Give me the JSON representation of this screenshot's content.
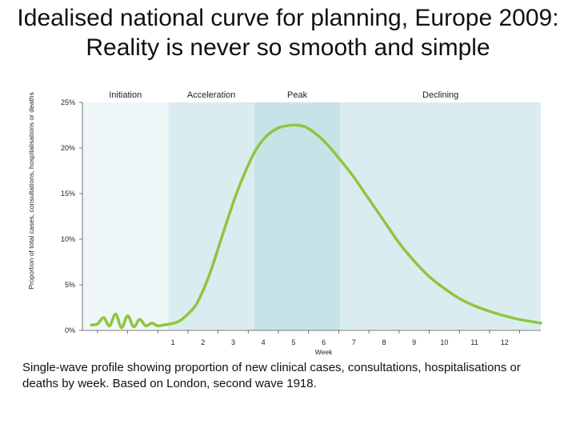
{
  "colors": {
    "curve": "#8dc63f",
    "initiation_band": "#eef6f8",
    "acceleration_band": "#dbecf1",
    "peak_band": "#c8e3e8",
    "declining_band": "#dbecf1",
    "axis": "#555555"
  },
  "chart_data": {
    "type": "line",
    "title": "Idealised national curve for planning, Europe 2009: Reality is never so smooth and simple",
    "xlabel": "Week",
    "ylabel": "Proportion of total cases, consultations, hospitalisations or deaths",
    "y_ticks": [
      "0%",
      "5%",
      "10%",
      "15%",
      "20%",
      "25%"
    ],
    "x_ticks": [
      "1",
      "2",
      "3",
      "4",
      "5",
      "6",
      "7",
      "8",
      "9",
      "10",
      "11",
      "12"
    ],
    "ylim": [
      0,
      25
    ],
    "xlim": [
      -2,
      13.2
    ],
    "phases": [
      {
        "label": "Initiation",
        "start": -2,
        "end": 0.85
      },
      {
        "label": "Acceleration",
        "start": 0.85,
        "end": 3.7
      },
      {
        "label": "Peak",
        "start": 3.7,
        "end": 6.55
      },
      {
        "label": "Declining",
        "start": 6.55,
        "end": 13.2
      }
    ],
    "series": [
      {
        "x": [
          -1.7,
          -1.5,
          -1.3,
          -1.1,
          -0.9,
          -0.7,
          -0.5,
          -0.3,
          -0.1,
          0.1,
          0.3,
          0.5,
          0.7,
          0.9,
          1.2,
          1.5,
          1.8,
          2.2,
          2.6,
          3.0,
          3.3,
          3.7,
          4.1,
          4.5,
          4.9,
          5.1,
          5.4,
          5.8,
          6.2,
          6.6,
          7.0,
          7.5,
          8.0,
          8.5,
          9.0,
          9.5,
          10.0,
          10.5,
          11.0,
          11.5,
          12.0,
          12.5,
          13.2
        ],
        "y": [
          0.6,
          0.7,
          1.4,
          0.5,
          1.8,
          0.3,
          1.6,
          0.4,
          1.2,
          0.5,
          0.8,
          0.5,
          0.6,
          0.7,
          1.0,
          1.8,
          3.0,
          6.0,
          10.0,
          14.0,
          16.6,
          19.5,
          21.3,
          22.2,
          22.5,
          22.5,
          22.3,
          21.4,
          20.1,
          18.5,
          16.8,
          14.4,
          12.0,
          9.6,
          7.6,
          5.9,
          4.6,
          3.5,
          2.7,
          2.1,
          1.6,
          1.2,
          0.8
        ]
      }
    ]
  },
  "caption": "Single-wave profile showing proportion of new clinical cases, consultations, hospitalisations or deaths by week. Based on London, second wave 1918."
}
